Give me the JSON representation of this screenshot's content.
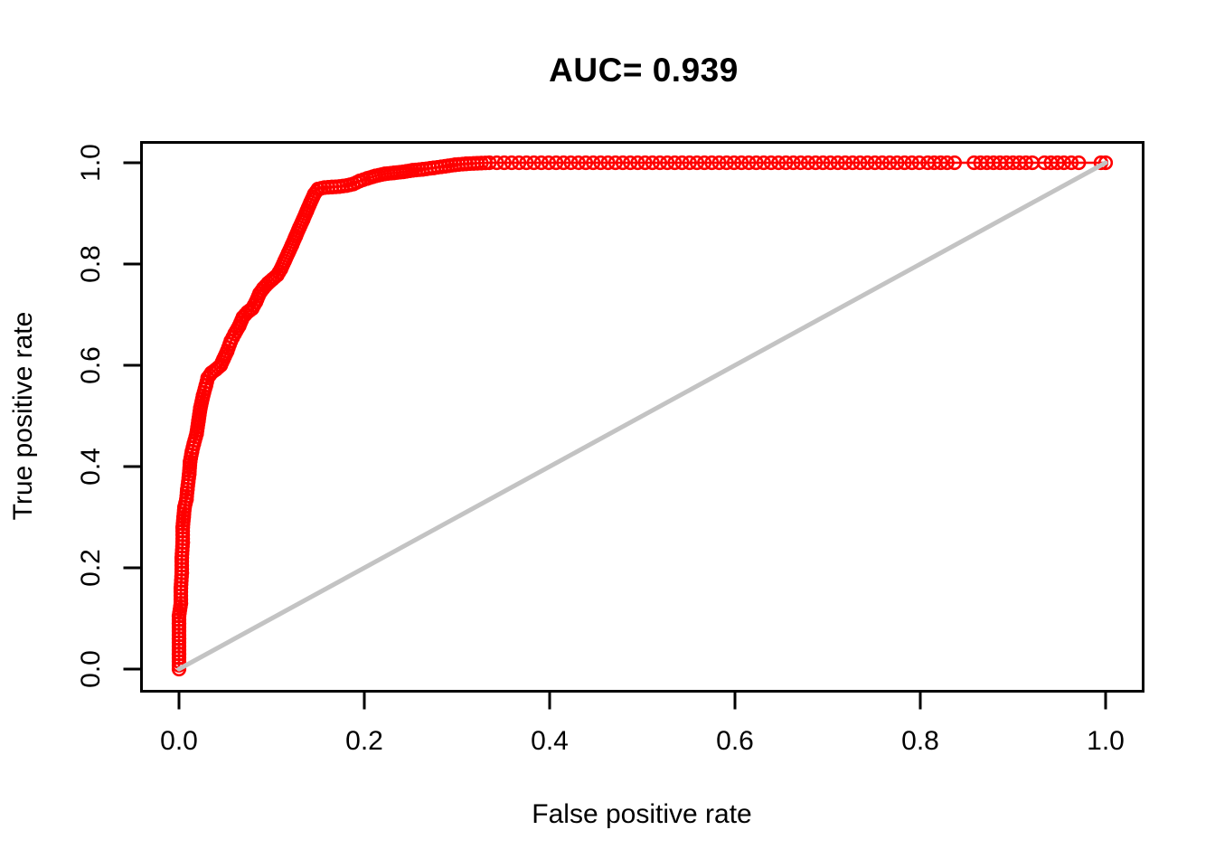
{
  "page": {
    "background": "#ffffff"
  },
  "chart_data": {
    "type": "line",
    "title": "AUC= 0.939",
    "auc": 0.939,
    "xlabel": "False positive rate",
    "ylabel": "True positive rate",
    "xlim": [
      0.0,
      1.0
    ],
    "ylim": [
      0.0,
      1.0
    ],
    "x_tick_labels": [
      "0.0",
      "0.2",
      "0.4",
      "0.6",
      "0.8",
      "1.0"
    ],
    "y_tick_labels": [
      "0.0",
      "0.2",
      "0.4",
      "0.6",
      "0.8",
      "1.0"
    ],
    "grid": false,
    "legend_position": "none",
    "colors": {
      "curve": "#ff0000",
      "diagonal": "#c3c3c3",
      "axis": "#000000",
      "text": "#000000"
    },
    "series": [
      {
        "name": "ROC curve",
        "marker": "open-circle",
        "color": "#ff0000",
        "points": [
          [
            0.0,
            0.0
          ],
          [
            0.0,
            0.03
          ],
          [
            0.0,
            0.06
          ],
          [
            0.0,
            0.09
          ],
          [
            0.0,
            0.105
          ],
          [
            0.002,
            0.13
          ],
          [
            0.002,
            0.16
          ],
          [
            0.003,
            0.19
          ],
          [
            0.003,
            0.22
          ],
          [
            0.004,
            0.25
          ],
          [
            0.004,
            0.28
          ],
          [
            0.005,
            0.3
          ],
          [
            0.006,
            0.32
          ],
          [
            0.008,
            0.335
          ],
          [
            0.009,
            0.355
          ],
          [
            0.011,
            0.385
          ],
          [
            0.012,
            0.41
          ],
          [
            0.014,
            0.43
          ],
          [
            0.016,
            0.445
          ],
          [
            0.019,
            0.465
          ],
          [
            0.021,
            0.49
          ],
          [
            0.023,
            0.515
          ],
          [
            0.026,
            0.54
          ],
          [
            0.029,
            0.56
          ],
          [
            0.031,
            0.575
          ],
          [
            0.035,
            0.585
          ],
          [
            0.04,
            0.592
          ],
          [
            0.045,
            0.6
          ],
          [
            0.048,
            0.612
          ],
          [
            0.052,
            0.628
          ],
          [
            0.056,
            0.648
          ],
          [
            0.06,
            0.662
          ],
          [
            0.065,
            0.678
          ],
          [
            0.069,
            0.695
          ],
          [
            0.074,
            0.705
          ],
          [
            0.079,
            0.712
          ],
          [
            0.083,
            0.725
          ],
          [
            0.087,
            0.742
          ],
          [
            0.091,
            0.752
          ],
          [
            0.096,
            0.762
          ],
          [
            0.101,
            0.77
          ],
          [
            0.106,
            0.778
          ],
          [
            0.11,
            0.79
          ],
          [
            0.114,
            0.806
          ],
          [
            0.118,
            0.822
          ],
          [
            0.122,
            0.838
          ],
          [
            0.126,
            0.855
          ],
          [
            0.13,
            0.872
          ],
          [
            0.134,
            0.888
          ],
          [
            0.138,
            0.905
          ],
          [
            0.142,
            0.922
          ],
          [
            0.146,
            0.938
          ],
          [
            0.15,
            0.948
          ],
          [
            0.157,
            0.951
          ],
          [
            0.165,
            0.952
          ],
          [
            0.173,
            0.953
          ],
          [
            0.181,
            0.955
          ],
          [
            0.188,
            0.958
          ],
          [
            0.195,
            0.964
          ],
          [
            0.203,
            0.969
          ],
          [
            0.212,
            0.974
          ],
          [
            0.222,
            0.978
          ],
          [
            0.232,
            0.98
          ],
          [
            0.242,
            0.982
          ],
          [
            0.252,
            0.985
          ],
          [
            0.263,
            0.987
          ],
          [
            0.275,
            0.99
          ],
          [
            0.287,
            0.993
          ],
          [
            0.298,
            0.996
          ],
          [
            0.31,
            0.998
          ],
          [
            0.322,
            0.999
          ],
          [
            0.335,
            1.0
          ]
        ]
      },
      {
        "name": "ROC curve (TPR = 1.0 run)",
        "marker": "open-circle",
        "color": "#ff0000",
        "tpr": 1.0,
        "fpr_points": [
          0.343,
          0.351,
          0.359,
          0.367,
          0.375,
          0.383,
          0.391,
          0.399,
          0.407,
          0.415,
          0.423,
          0.431,
          0.439,
          0.447,
          0.455,
          0.463,
          0.471,
          0.479,
          0.487,
          0.495,
          0.503,
          0.511,
          0.519,
          0.527,
          0.535,
          0.543,
          0.551,
          0.559,
          0.567,
          0.575,
          0.583,
          0.591,
          0.599,
          0.607,
          0.615,
          0.623,
          0.631,
          0.639,
          0.647,
          0.655,
          0.663,
          0.671,
          0.679,
          0.687,
          0.695,
          0.703,
          0.711,
          0.719,
          0.727,
          0.735,
          0.743,
          0.751,
          0.759,
          0.767,
          0.775,
          0.783,
          0.791,
          0.799,
          0.808,
          0.815,
          0.822,
          0.829,
          0.837,
          0.858,
          0.865,
          0.872,
          0.879,
          0.886,
          0.893,
          0.9,
          0.907,
          0.914,
          0.921,
          0.934,
          0.941,
          0.948,
          0.955,
          0.963,
          0.971,
          0.995,
          1.0
        ]
      },
      {
        "name": "chance diagonal",
        "marker": "none",
        "color": "#c3c3c3",
        "points": [
          [
            0.0,
            0.0
          ],
          [
            1.0,
            1.0
          ]
        ]
      }
    ]
  }
}
